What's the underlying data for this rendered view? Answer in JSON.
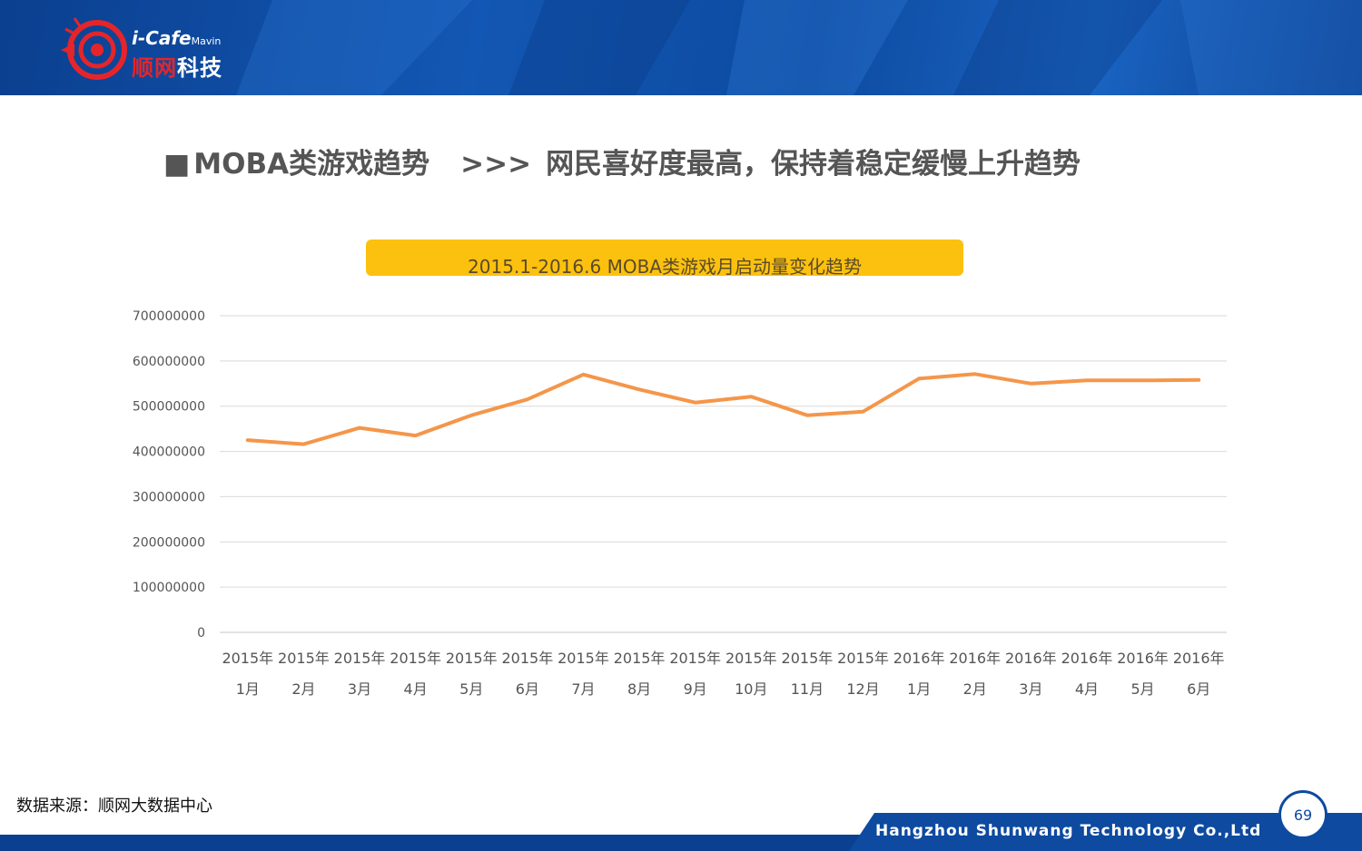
{
  "header": {
    "logo_brand_en": "i-Cafe",
    "logo_brand_sub": "Mavin",
    "logo_brand_cn_red": "顺网",
    "logo_brand_cn_white": "科技"
  },
  "slide": {
    "bullet": "■",
    "title_main": "MOBA类游戏趋势",
    "title_arrow": ">>>",
    "title_sub": "网民喜好度最高，保持着稳定缓慢上升趋势"
  },
  "chart_data": {
    "type": "line",
    "title": "2015.1-2016.6 MOBA类游戏月启动量变化趋势",
    "categories": [
      [
        "2015年",
        "1月"
      ],
      [
        "2015年",
        "2月"
      ],
      [
        "2015年",
        "3月"
      ],
      [
        "2015年",
        "4月"
      ],
      [
        "2015年",
        "5月"
      ],
      [
        "2015年",
        "6月"
      ],
      [
        "2015年",
        "7月"
      ],
      [
        "2015年",
        "8月"
      ],
      [
        "2015年",
        "9月"
      ],
      [
        "2015年",
        "10月"
      ],
      [
        "2015年",
        "11月"
      ],
      [
        "2015年",
        "12月"
      ],
      [
        "2016年",
        "1月"
      ],
      [
        "2016年",
        "2月"
      ],
      [
        "2016年",
        "3月"
      ],
      [
        "2016年",
        "4月"
      ],
      [
        "2016年",
        "5月"
      ],
      [
        "2016年",
        "6月"
      ]
    ],
    "series": [
      {
        "values": [
          425000000,
          416000000,
          452000000,
          435000000,
          480000000,
          515000000,
          570000000,
          537000000,
          508000000,
          521000000,
          480000000,
          488000000,
          561000000,
          571000000,
          550000000,
          557000000,
          557000000,
          558000000
        ],
        "color": "#f4964a"
      }
    ],
    "ylim": [
      0,
      700000000
    ],
    "yticks": [
      "0",
      "100000000",
      "200000000",
      "300000000",
      "400000000",
      "500000000",
      "600000000",
      "700000000"
    ],
    "grid": true,
    "legend": "none"
  },
  "source": "数据来源：顺网大数据中心",
  "footer": {
    "company": "Hangzhou Shunwang Technology Co.,Ltd",
    "page_number": "69"
  },
  "colors": {
    "header_blue": "#0d4aa0",
    "title_pill": "#fcc10e",
    "line": "#f4964a",
    "grid": "#d9d9d9"
  }
}
